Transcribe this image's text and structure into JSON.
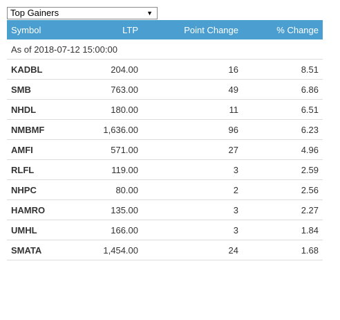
{
  "filter": {
    "selected": "Top Gainers",
    "arrow": "▼"
  },
  "table": {
    "headers": {
      "symbol": "Symbol",
      "ltp": "LTP",
      "point_change": "Point Change",
      "pct_change": "% Change"
    },
    "as_of": "As of 2018-07-12 15:00:00",
    "rows": [
      {
        "symbol": "KADBL",
        "ltp": "204.00",
        "point_change": "16",
        "pct_change": "8.51"
      },
      {
        "symbol": "SMB",
        "ltp": "763.00",
        "point_change": "49",
        "pct_change": "6.86"
      },
      {
        "symbol": "NHDL",
        "ltp": "180.00",
        "point_change": "11",
        "pct_change": "6.51"
      },
      {
        "symbol": "NMBMF",
        "ltp": "1,636.00",
        "point_change": "96",
        "pct_change": "6.23"
      },
      {
        "symbol": "AMFI",
        "ltp": "571.00",
        "point_change": "27",
        "pct_change": "4.96"
      },
      {
        "symbol": "RLFL",
        "ltp": "119.00",
        "point_change": "3",
        "pct_change": "2.59"
      },
      {
        "symbol": "NHPC",
        "ltp": "80.00",
        "point_change": "2",
        "pct_change": "2.56"
      },
      {
        "symbol": "HAMRO",
        "ltp": "135.00",
        "point_change": "3",
        "pct_change": "2.27"
      },
      {
        "symbol": "UMHL",
        "ltp": "166.00",
        "point_change": "3",
        "pct_change": "1.84"
      },
      {
        "symbol": "SMATA",
        "ltp": "1,454.00",
        "point_change": "24",
        "pct_change": "1.68"
      }
    ]
  }
}
